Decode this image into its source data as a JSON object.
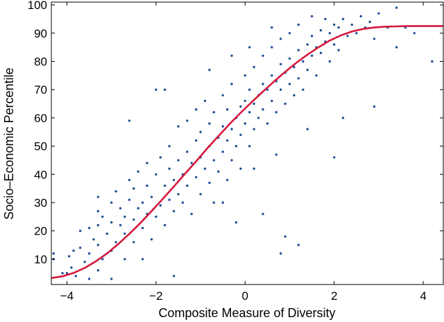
{
  "chart_data": {
    "type": "scatter",
    "title": "",
    "xlabel": "Composite Measure of Diversity",
    "ylabel": "Socio–Economic Percentile",
    "xlim": [
      -4.35,
      4.45
    ],
    "ylim": [
      1,
      101
    ],
    "x_ticks": [
      -4,
      -2,
      0,
      2,
      4
    ],
    "y_ticks": [
      10,
      20,
      30,
      40,
      50,
      60,
      70,
      80,
      90,
      100
    ],
    "grid": false,
    "legend": "none",
    "scatter": {
      "color": "#1f4e96",
      "points": [
        [
          -4.3,
          10
        ],
        [
          -4.3,
          12
        ],
        [
          -4.1,
          5
        ],
        [
          -4,
          5
        ],
        [
          -3.95,
          11
        ],
        [
          -3.9,
          7
        ],
        [
          -3.85,
          13
        ],
        [
          -3.8,
          4
        ],
        [
          -3.7,
          20
        ],
        [
          -3.7,
          14
        ],
        [
          -3.6,
          9
        ],
        [
          -3.5,
          3
        ],
        [
          -3.5,
          12
        ],
        [
          -3.5,
          21
        ],
        [
          -3.4,
          17
        ],
        [
          -3.3,
          6
        ],
        [
          -3.3,
          15
        ],
        [
          -3.3,
          22
        ],
        [
          -3.2,
          10
        ],
        [
          -3.2,
          25
        ],
        [
          -3.1,
          19
        ],
        [
          -3,
          3
        ],
        [
          -3,
          13
        ],
        [
          -3,
          23
        ],
        [
          -3,
          30
        ],
        [
          -2.9,
          16
        ],
        [
          -2.9,
          34
        ],
        [
          -2.8,
          22
        ],
        [
          -2.8,
          28
        ],
        [
          -2.7,
          10
        ],
        [
          -2.7,
          19
        ],
        [
          -2.7,
          25
        ],
        [
          -2.6,
          31
        ],
        [
          -2.6,
          38
        ],
        [
          -2.5,
          24
        ],
        [
          -2.5,
          16
        ],
        [
          -2.5,
          35
        ],
        [
          -2.4,
          28
        ],
        [
          -2.4,
          41
        ],
        [
          -2.3,
          21
        ],
        [
          -2.3,
          30
        ],
        [
          -2.2,
          36
        ],
        [
          -2.2,
          26
        ],
        [
          -2.2,
          44
        ],
        [
          -2.1,
          17
        ],
        [
          -2.1,
          32
        ],
        [
          -2,
          40
        ],
        [
          -2,
          25
        ],
        [
          -2,
          70
        ],
        [
          -1.9,
          29
        ],
        [
          -1.9,
          46
        ],
        [
          -1.8,
          36
        ],
        [
          -1.8,
          22
        ],
        [
          -1.7,
          42
        ],
        [
          -1.7,
          31
        ],
        [
          -1.7,
          50
        ],
        [
          -1.6,
          38
        ],
        [
          -1.6,
          27
        ],
        [
          -1.5,
          45
        ],
        [
          -1.5,
          33
        ],
        [
          -1.5,
          57
        ],
        [
          -1.4,
          40
        ],
        [
          -1.4,
          30
        ],
        [
          -1.3,
          48
        ],
        [
          -1.3,
          36
        ],
        [
          -1.3,
          59
        ],
        [
          -1.2,
          44
        ],
        [
          -1.2,
          26
        ],
        [
          -1.1,
          52
        ],
        [
          -1.1,
          39
        ],
        [
          -1.1,
          63
        ],
        [
          -1,
          46
        ],
        [
          -1,
          33
        ],
        [
          -1,
          55
        ],
        [
          -0.9,
          42
        ],
        [
          -0.9,
          66
        ],
        [
          -0.8,
          50
        ],
        [
          -0.8,
          37
        ],
        [
          -0.8,
          58
        ],
        [
          -0.7,
          45
        ],
        [
          -0.7,
          62
        ],
        [
          -0.7,
          30
        ],
        [
          -0.6,
          53
        ],
        [
          -0.6,
          41
        ],
        [
          -0.5,
          57
        ],
        [
          -0.5,
          48
        ],
        [
          -0.5,
          68
        ],
        [
          -0.4,
          52
        ],
        [
          -0.4,
          38
        ],
        [
          -0.4,
          63
        ],
        [
          -0.3,
          56
        ],
        [
          -0.3,
          45
        ],
        [
          -0.3,
          72
        ],
        [
          -0.2,
          60
        ],
        [
          -0.2,
          50
        ],
        [
          -0.1,
          64
        ],
        [
          -0.1,
          54
        ],
        [
          -0.1,
          42
        ],
        [
          0,
          66
        ],
        [
          0,
          58
        ],
        [
          0,
          75
        ],
        [
          0.1,
          62
        ],
        [
          0.1,
          50
        ],
        [
          0.1,
          70
        ],
        [
          0.2,
          65
        ],
        [
          0.2,
          56
        ],
        [
          0.2,
          78
        ],
        [
          0.3,
          68
        ],
        [
          0.3,
          60
        ],
        [
          0.4,
          72
        ],
        [
          0.4,
          63
        ],
        [
          0.4,
          82
        ],
        [
          0.5,
          70
        ],
        [
          0.5,
          58
        ],
        [
          0.6,
          75
        ],
        [
          0.6,
          66
        ],
        [
          0.6,
          85
        ],
        [
          0.7,
          73
        ],
        [
          0.7,
          62
        ],
        [
          0.8,
          79
        ],
        [
          0.8,
          70
        ],
        [
          0.8,
          88
        ],
        [
          0.9,
          76
        ],
        [
          0.9,
          65
        ],
        [
          1,
          81
        ],
        [
          1,
          72
        ],
        [
          1,
          90
        ],
        [
          1.1,
          78
        ],
        [
          1.1,
          68
        ],
        [
          1.2,
          84
        ],
        [
          1.2,
          74
        ],
        [
          1.2,
          93
        ],
        [
          1.3,
          80
        ],
        [
          1.3,
          70
        ],
        [
          1.4,
          86
        ],
        [
          1.4,
          77
        ],
        [
          1.5,
          89
        ],
        [
          1.5,
          82
        ],
        [
          1.5,
          96
        ],
        [
          1.6,
          85
        ],
        [
          1.6,
          75
        ],
        [
          1.7,
          91
        ],
        [
          1.7,
          83
        ],
        [
          1.8,
          87
        ],
        [
          1.8,
          95
        ],
        [
          1.9,
          90
        ],
        [
          1.9,
          80
        ],
        [
          2,
          93
        ],
        [
          2,
          86
        ],
        [
          2.1,
          92
        ],
        [
          2.1,
          84
        ],
        [
          2.2,
          95
        ],
        [
          2.3,
          89
        ],
        [
          2.4,
          93
        ],
        [
          2.5,
          90
        ],
        [
          2.6,
          96
        ],
        [
          2.7,
          92
        ],
        [
          2.8,
          94
        ],
        [
          2.9,
          88
        ],
        [
          3,
          97
        ],
        [
          3.2,
          92
        ],
        [
          3.4,
          99
        ],
        [
          3.6,
          92
        ],
        [
          3.8,
          90
        ],
        [
          -3.3,
          32
        ],
        [
          -3.3,
          27
        ],
        [
          -2.3,
          10
        ],
        [
          -1.6,
          4
        ],
        [
          0.4,
          26
        ],
        [
          0.8,
          12
        ],
        [
          0.9,
          18
        ],
        [
          1.2,
          15
        ],
        [
          2,
          46
        ],
        [
          2.2,
          60
        ],
        [
          2.9,
          64
        ],
        [
          -0.5,
          30
        ],
        [
          -0.2,
          23
        ],
        [
          0.2,
          42
        ],
        [
          0.7,
          47
        ],
        [
          1.4,
          56
        ],
        [
          -1.8,
          70
        ],
        [
          -0.8,
          77
        ],
        [
          -0.3,
          82
        ],
        [
          0.1,
          85
        ],
        [
          0.6,
          92
        ],
        [
          -2.6,
          59
        ],
        [
          3.4,
          85
        ],
        [
          4.2,
          80
        ]
      ]
    },
    "fit_line": {
      "color": "#d4183c",
      "x": [
        -4.35,
        -4.1,
        -3.85,
        -3.6,
        -3.35,
        -3.1,
        -2.85,
        -2.6,
        -2.35,
        -2.1,
        -1.85,
        -1.6,
        -1.35,
        -1.1,
        -0.85,
        -0.6,
        -0.35,
        -0.1,
        0.15,
        0.4,
        0.65,
        0.9,
        1.15,
        1.4,
        1.65,
        1.9,
        2.15,
        2.4,
        2.65,
        2.9,
        3.15,
        3.4,
        3.65,
        3.9,
        4.15,
        4.45
      ],
      "y": [
        3.3,
        3.9,
        5.1,
        6.9,
        9.2,
        12.0,
        15.3,
        18.9,
        22.8,
        27.0,
        31.3,
        35.7,
        40.2,
        44.6,
        49.2,
        53.5,
        57.8,
        61.8,
        65.6,
        69.3,
        72.9,
        76.3,
        79.5,
        82.4,
        85.0,
        87.4,
        89.2,
        90.6,
        91.5,
        92.0,
        92.3,
        92.4,
        92.5,
        92.5,
        92.5,
        92.5
      ]
    }
  }
}
